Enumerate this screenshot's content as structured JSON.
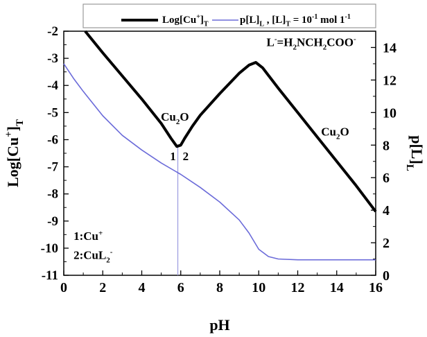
{
  "chart_data": {
    "type": "line",
    "xlabel": "pH",
    "ylabel_left": {
      "base": "Log[Cu",
      "sup": "+",
      "sub": "T",
      "close": "]"
    },
    "ylabel_right": {
      "base": "p[L]",
      "sub": "L"
    },
    "xlim": [
      0,
      16
    ],
    "ylim_left": [
      -11,
      -2
    ],
    "ylim_right": [
      0,
      15
    ],
    "x_ticks": [
      "0",
      "2",
      "4",
      "6",
      "8",
      "10",
      "12",
      "14",
      "16"
    ],
    "y_left_ticks": [
      "-2",
      "-3",
      "-4",
      "-5",
      "-6",
      "-7",
      "-8",
      "-9",
      "-10",
      "-11"
    ],
    "y_right_ticks": [
      "0",
      "2",
      "4",
      "6",
      "8",
      "10",
      "12",
      "14"
    ],
    "legend": {
      "position": "top",
      "entries": [
        {
          "series": "logCu",
          "label_parts": [
            {
              "t": "Log[Cu"
            },
            {
              "t": "+",
              "sup": true
            },
            {
              "t": "]"
            },
            {
              "t": "T",
              "sub": true
            }
          ]
        },
        {
          "series": "pL",
          "label_parts": [
            {
              "t": "p[L]"
            },
            {
              "t": "L",
              "sub": true
            },
            {
              "t": " , [L]"
            },
            {
              "t": "T",
              "sub": true
            },
            {
              "t": " = 10"
            },
            {
              "t": "-1",
              "sup": true
            },
            {
              "t": " mol 1"
            },
            {
              "t": "-1",
              "sup": true
            }
          ]
        }
      ]
    },
    "series": [
      {
        "key": "logCu",
        "axis": "left",
        "color": "#000000",
        "x": [
          1.1,
          2,
          3,
          4,
          5,
          5.5,
          5.8,
          6.0,
          6.2,
          6.6,
          7,
          8,
          9,
          9.5,
          9.85,
          10.2,
          11,
          12,
          13,
          14,
          15,
          16
        ],
        "y": [
          -2.0,
          -2.8,
          -3.65,
          -4.5,
          -5.4,
          -5.95,
          -6.25,
          -6.2,
          -5.95,
          -5.5,
          -5.1,
          -4.3,
          -3.55,
          -3.25,
          -3.15,
          -3.35,
          -4.1,
          -5.0,
          -5.9,
          -6.8,
          -7.7,
          -8.65
        ]
      },
      {
        "key": "pL",
        "axis": "right",
        "color": "#6b6bd9",
        "x": [
          0,
          0.5,
          1,
          2,
          3,
          4,
          5,
          6,
          7,
          8,
          9,
          9.5,
          10,
          10.5,
          11,
          12,
          13,
          14,
          15,
          16
        ],
        "y": [
          13.0,
          12.1,
          11.3,
          9.8,
          8.6,
          7.7,
          6.9,
          6.2,
          5.4,
          4.5,
          3.4,
          2.6,
          1.6,
          1.15,
          1.0,
          0.95,
          0.95,
          0.95,
          0.95,
          0.95
        ]
      }
    ],
    "vertical_line": {
      "x": 5.85,
      "color": "#9a9ae0"
    },
    "annotations": [
      {
        "key": "ligand",
        "parts": [
          {
            "t": "L"
          },
          {
            "t": "-",
            "sup": true
          },
          {
            "t": "=H"
          },
          {
            "t": "2",
            "sub": true
          },
          {
            "t": "NCH"
          },
          {
            "t": "2",
            "sub": true
          },
          {
            "t": "COO"
          },
          {
            "t": "-",
            "sup": true
          }
        ],
        "x": 10.4,
        "y_left": -2.55
      },
      {
        "key": "cu2o_left",
        "parts": [
          {
            "t": "Cu"
          },
          {
            "t": "2",
            "sub": true
          },
          {
            "t": "O"
          }
        ],
        "x": 5.7,
        "y_left": -5.3
      },
      {
        "key": "cu2o_right",
        "parts": [
          {
            "t": "Cu"
          },
          {
            "t": "2",
            "sub": true
          },
          {
            "t": "O"
          }
        ],
        "x": 13.2,
        "y_left": -5.85
      },
      {
        "key": "mark1",
        "parts": [
          {
            "t": "1"
          }
        ],
        "x": 5.45,
        "y_left": -6.75
      },
      {
        "key": "mark2",
        "parts": [
          {
            "t": "2"
          }
        ],
        "x": 6.1,
        "y_left": -6.75
      },
      {
        "key": "species1",
        "parts": [
          {
            "t": "1:Cu"
          },
          {
            "t": "+",
            "sup": true
          }
        ],
        "x": 0.5,
        "y_left": -9.7
      },
      {
        "key": "species2",
        "parts": [
          {
            "t": "2:CuL"
          },
          {
            "t": "2",
            "sub": true
          },
          {
            "t": "-",
            "sup": true
          }
        ],
        "x": 0.5,
        "y_left": -10.4
      }
    ]
  }
}
